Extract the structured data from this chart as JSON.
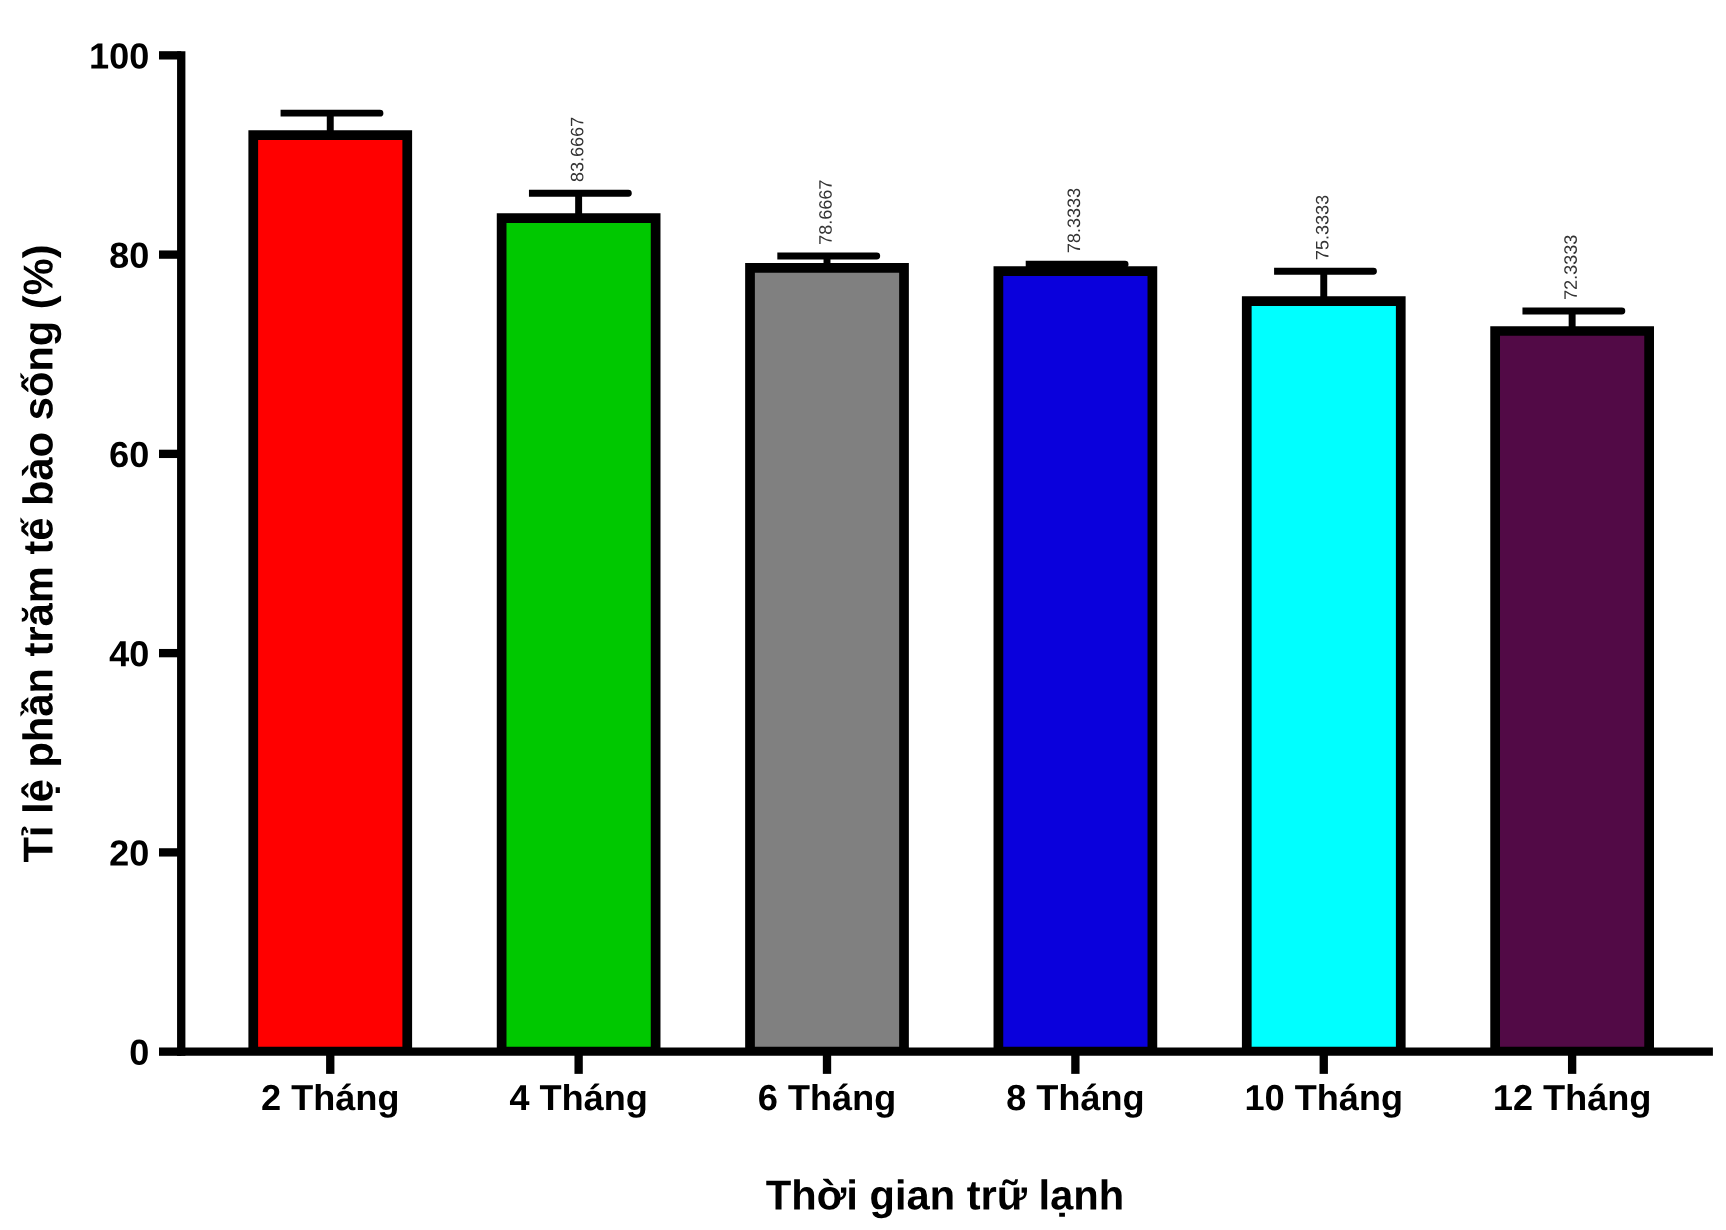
{
  "chart_data": {
    "type": "bar",
    "xlabel": "Thời gian trữ lạnh",
    "ylabel": "Tỉ lệ phần trăm tế bào sống (%)",
    "categories": [
      "2 Tháng",
      "4 Tháng",
      "6 Tháng",
      "8 Tháng",
      "10 Tháng",
      "12 Tháng"
    ],
    "values": [
      92,
      83.6667,
      78.6667,
      78.3333,
      75.3333,
      72.3333
    ],
    "errors": [
      2.2,
      2.5,
      1.2,
      0.7,
      3.0,
      2.0
    ],
    "value_labels": [
      null,
      "83.6667",
      "78.6667",
      "78.3333",
      "75.3333",
      "72.3333"
    ],
    "colors": [
      "#ff0000",
      "#00c800",
      "#808080",
      "#0a00dc",
      "#00ffff",
      "#520a46"
    ],
    "ylim": [
      0,
      100
    ],
    "yticks": [
      0,
      20,
      40,
      60,
      80,
      100
    ],
    "grid": false,
    "legend": false
  }
}
